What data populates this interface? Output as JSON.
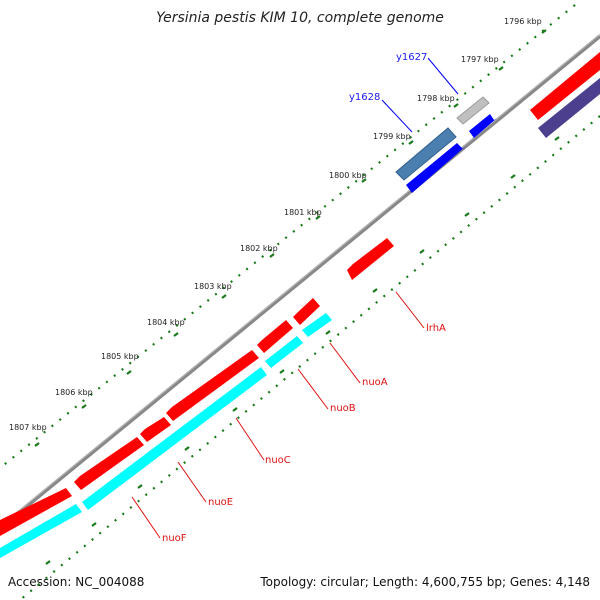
{
  "title": "Yersinia pestis KIM 10, complete genome",
  "footer": {
    "accession": "Accession: NC_004088",
    "summary": "Topology: circular; Length: 4,600,755 bp; Genes: 4,148"
  },
  "colors": {
    "backbone": "#888888",
    "forward_gene": "#0000ff",
    "reverse_gene": "#ff0000",
    "cds_reverse": "#00ffff",
    "cds_forward": "#4a7fb0",
    "other_forward": "#4b3f8e",
    "pseudo": "#c0c0c0",
    "tick": "#1a7a1a"
  },
  "kbp_labels": [
    "1796 kbp",
    "1797 kbp",
    "1798 kbp",
    "1799 kbp",
    "1800 kbp",
    "1801 kbp",
    "1802 kbp",
    "1803 kbp",
    "1804 kbp",
    "1805 kbp",
    "1806 kbp",
    "1807 kbp"
  ],
  "forward_gene_labels": [
    {
      "name": "y1627"
    },
    {
      "name": "y1628"
    }
  ],
  "reverse_gene_labels": [
    {
      "name": "lrhA"
    },
    {
      "name": "nuoA"
    },
    {
      "name": "nuoB"
    },
    {
      "name": "nuoC"
    },
    {
      "name": "nuoE"
    },
    {
      "name": "nuoF"
    }
  ]
}
